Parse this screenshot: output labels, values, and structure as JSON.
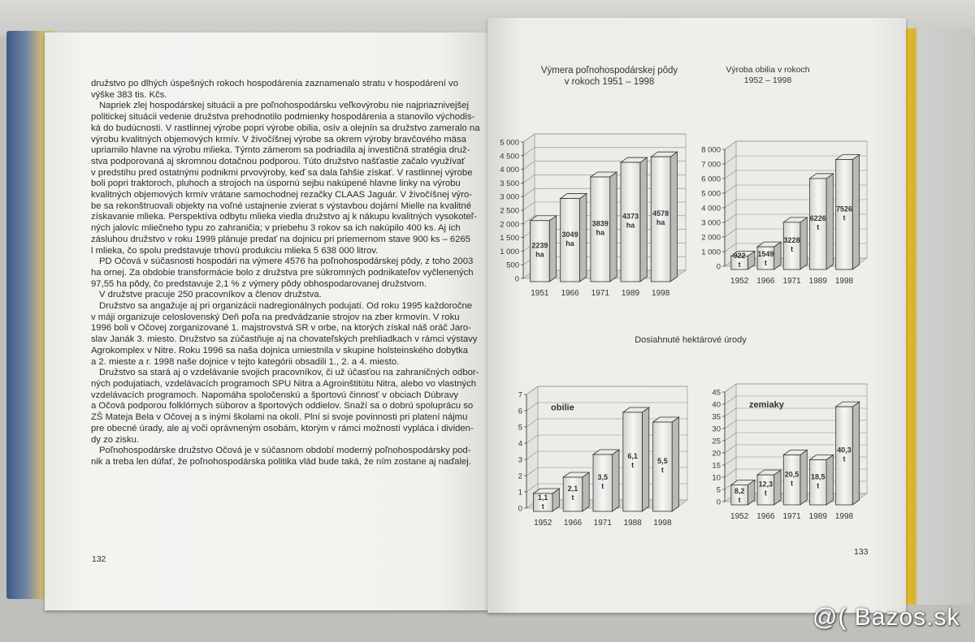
{
  "left_page": {
    "lines": [
      "družstvo po dlhých úspešných rokoch hospodárenia zaznamenalo stratu v hospodárení vo",
      "výške 383 tis. Kčs.",
      "Napriek zlej hospodárskej situácii a pre poľnohospodársku veľkovýrobu nie najpriaznivejšej",
      "politickej situácii vedenie družstva prehodnotilo podmienky hospodárenia a stanovilo východis-",
      "ká do budúcnosti. V rastlinnej výrobe popri výrobe obilia, osív a olejnín sa družstvo zameralo na",
      "výrobu kvalitných objemových krmív. V živočíšnej výrobe sa okrem výroby bravčového mäsa",
      "upriamilo hlavne na výrobu mlieka. Týmto zámerom sa podriadila aj investičná stratégia druž-",
      "stva podporovaná aj skromnou dotačnou podporou. Túto družstvo našťastie začalo využívať",
      "v predstihu pred ostatnými podnikmi prvovýroby, keď sa dala ľahšie získať. V rastlinnej výrobe",
      "boli popri traktoroch, pluhoch a strojoch na úspornú sejbu nakúpené hlavne linky na výrobu",
      "kvalitných objemových krmív vrátane samochodnej rezačky CLAAS Jaguár. V živočíšnej výro-",
      "be sa rekonštruovali objekty na voľné ustajnenie zvierat s výstavbou dojární Mielle na kvalitné",
      "získavanie mlieka. Perspektíva odbytu mlieka viedla družstvo aj k nákupu kvalitných vysokoteľ-",
      "ných jalovíc mliečneho typu zo zahraničia; v priebehu 3 rokov sa ich nakúpilo 400 ks. Aj ich",
      "zásluhou družstvo v roku 1999 plánuje predať na dojnicu pri priemernom stave 900 ks – 6265",
      "l mlieka, čo spolu predstavuje trhovú produkciu mlieka 5 638 000 litrov.",
      "PD Očová v súčasnosti hospodári na výmere 4576 ha poľnohospodárskej pôdy, z toho 2003",
      "ha ornej. Za obdobie transformácie bolo z družstva pre súkromných podnikateľov vyčlenených",
      "97,55 ha pôdy, čo predstavuje 2,1 % z výmery pôdy obhospodarovanej družstvom.",
      "V družstve pracuje 250 pracovníkov a členov družstva.",
      "Družstvo sa angažuje aj pri organizácii nadregionálnych podujatí. Od roku 1995 každoročne",
      "v máji organizuje celoslovenský Deň poľa na predvádzanie strojov na zber krmovín. V roku",
      "1996 boli v Očovej zorganizované 1. majstrovstvá SR v orbe, na ktorých získal náš oráč Jaro-",
      "slav Janák 3. miesto. Družstvo sa zúčastňuje aj na chovateľských prehliadkach v rámci výstavy",
      "Agrokomplex v Nitre. Roku 1996 sa naša dojnica umiestnila v skupine holsteinského dobytka",
      "a 2. mieste a r. 1998 naše dojnice v tejto kategórii obsadili 1., 2. a  4. miesto.",
      "Družstvo sa stará aj o vzdelávanie svojich pracovníkov, či už účasťou na zahraničných odbor-",
      "ných podujatiach, vzdelávacích programoch SPU Nitra a Agroinštitútu Nitra, alebo vo vlastných",
      "vzdelávacích programoch. Napomáha spoločenskú a športovú činnosť v obciach Dúbravy",
      "a Očová podporou folklórnych súborov a športových oddielov. Snaží sa o dobrú spoluprácu so",
      "ZŠ Mateja Bela v Očovej a s inými školami na okolí. Plní si svoje povinnosti pri platení nájmu",
      "pre obecné úrady, ale aj voči oprávneným osobám, ktorým v rámci možností vypláca i dividen-",
      "dy zo zisku.",
      "Poľnohospodárske družstvo Očová je v súčasnom období moderný poľnohospodársky pod-",
      "nik a treba len dúfať, že poľnohospodárska politika vlád bude taká, že ním zostane aj naďalej."
    ],
    "page_number": "132"
  },
  "right_page": {
    "page_number": "133",
    "subtitle": "Dosiahnuté hektárové úrody"
  },
  "watermark": "@( Bazos.sk",
  "chart_data": [
    {
      "type": "bar",
      "title": "Výmera poľnohospodárskej pôdy v rokoch 1951 – 1998",
      "title_lines": [
        "Výmera poľnohospodárskej pôdy",
        "v rokoch 1951 – 1998"
      ],
      "categories": [
        "1951",
        "1966",
        "1971",
        "1989",
        "1998"
      ],
      "values": [
        2239,
        3049,
        3839,
        4373,
        4578
      ],
      "data_labels": [
        "2239",
        "3049",
        "3839",
        "4373",
        "4578"
      ],
      "unit": "ha",
      "ylim": [
        0,
        5000
      ],
      "yticks": [
        "0",
        "500",
        "1 000",
        "1 500",
        "2 000",
        "2 500",
        "3 000",
        "3 500",
        "4 000",
        "4 500",
        "5 000"
      ],
      "grid": true,
      "style": "3d"
    },
    {
      "type": "bar",
      "title": "Výroba obilia v rokoch 1952 – 1998",
      "title_lines": [
        "Výroba obilia v rokoch",
        "1952 – 1998"
      ],
      "categories": [
        "1952",
        "1966",
        "1971",
        "1989",
        "1998"
      ],
      "values": [
        922,
        1549,
        3228,
        6226,
        7526
      ],
      "data_labels": [
        "922",
        "1549",
        "3228",
        "6226",
        "7526"
      ],
      "unit": "t",
      "ylim": [
        0,
        8000
      ],
      "yticks": [
        "0",
        "1 000",
        "2 000",
        "3 000",
        "4 000",
        "5 000",
        "6 000",
        "7 000",
        "8 000"
      ],
      "grid": true,
      "style": "3d"
    },
    {
      "type": "bar",
      "annotation": "obilie",
      "categories": [
        "1952",
        "1966",
        "1971",
        "1988",
        "1998"
      ],
      "values": [
        1.1,
        2.1,
        3.5,
        6.1,
        5.5
      ],
      "data_labels": [
        "1,1",
        "2,1",
        "3,5",
        "6,1",
        "5,5"
      ],
      "unit": "t",
      "ylim": [
        0,
        7
      ],
      "yticks": [
        "0",
        "1",
        "2",
        "3",
        "4",
        "5",
        "6",
        "7"
      ],
      "grid": true,
      "style": "3d"
    },
    {
      "type": "bar",
      "annotation": "zemiaky",
      "categories": [
        "1952",
        "1966",
        "1971",
        "1989",
        "1998"
      ],
      "values": [
        8.2,
        12.3,
        20.5,
        18.5,
        40.3
      ],
      "data_labels": [
        "8,2",
        "12,3",
        "20,5",
        "18,5",
        "40,3"
      ],
      "unit": "t",
      "ylim": [
        0,
        45
      ],
      "yticks": [
        "0",
        "5",
        "10",
        "15",
        "20",
        "25",
        "30",
        "35",
        "40",
        "45"
      ],
      "grid": true,
      "style": "3d"
    }
  ]
}
